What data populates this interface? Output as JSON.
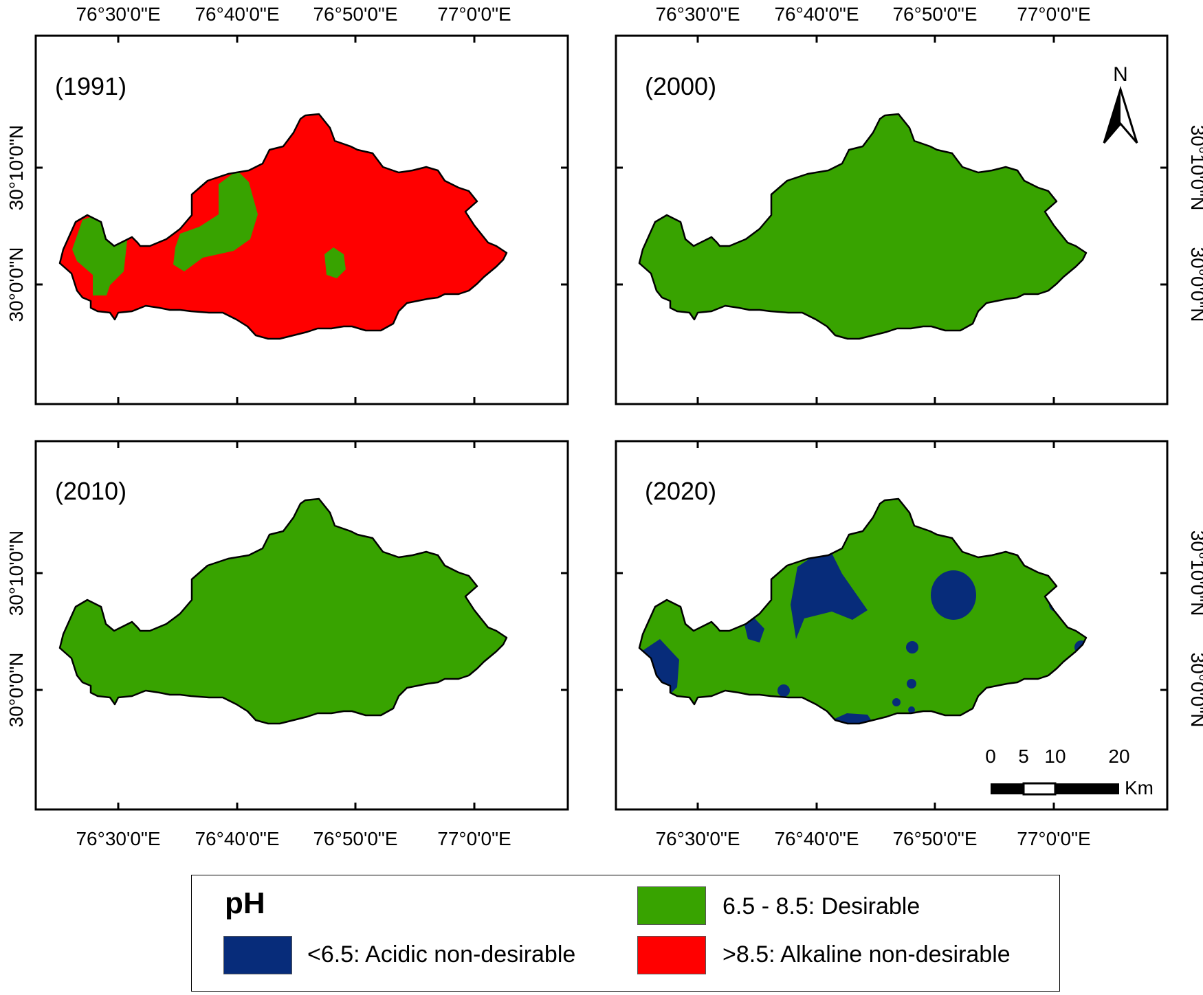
{
  "colors": {
    "acidic": "#072c7a",
    "desirable": "#38a300",
    "alkaline": "#ff0000"
  },
  "axes": {
    "top_labels": [
      "76°30'0\"E",
      "76°40'0\"E",
      "76°50'0\"E",
      "77°0'0\"E"
    ],
    "bottom_labels": [
      "76°30'0\"E",
      "76°40'0\"E",
      "76°50'0\"E",
      "77°0'0\"E"
    ],
    "left_labels": [
      "30°10'0\"N",
      "30°0'0\"N"
    ],
    "right_labels": [
      "30°10'0\"N",
      "30°0'0\"N"
    ]
  },
  "panels": [
    {
      "year": "(1991)",
      "base": "alkaline"
    },
    {
      "year": "(2000)",
      "base": "desirable"
    },
    {
      "year": "(2010)",
      "base": "desirable"
    },
    {
      "year": "(2020)",
      "base": "desirable"
    }
  ],
  "north_arrow": {
    "label": "N"
  },
  "scale_bar": {
    "ticks": [
      "0",
      "5",
      "10",
      "20"
    ],
    "unit": "Km"
  },
  "legend": {
    "title": "pH",
    "items": [
      {
        "class": "desirable",
        "label": "6.5 - 8.5: Desirable"
      },
      {
        "class": "acidic",
        "label": "<6.5: Acidic non-desirable"
      },
      {
        "class": "alkaline",
        "label": ">8.5: Alkaline non-desirable"
      }
    ]
  }
}
